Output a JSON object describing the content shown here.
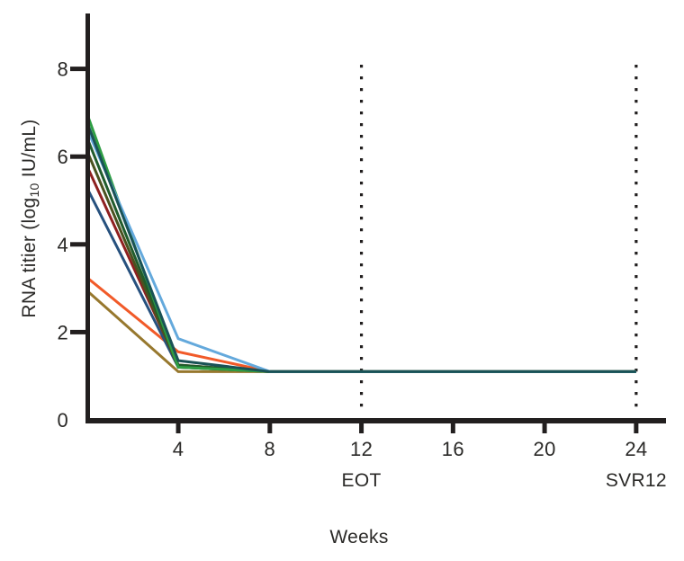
{
  "figure": {
    "background": "#ffffff",
    "axis_color": "#221f1f",
    "text_color": "#2b2a28"
  },
  "chart_data": {
    "type": "line",
    "title": "",
    "xlabel": "Weeks",
    "ylabel": "RNA titier (log10 IU/mL)",
    "ylabel_parts": {
      "pre_sub": "RNA titier (log",
      "sub": "10",
      "post_sub": " IU/mL)"
    },
    "x": [
      0,
      4,
      8,
      24
    ],
    "xlim": [
      0,
      25.3
    ],
    "ylim": [
      0,
      8
    ],
    "x_ticks": [
      4,
      8,
      12,
      16,
      20,
      24
    ],
    "y_ticks_with_marks": [
      2,
      4,
      6,
      8
    ],
    "y_tick_labels": [
      0,
      2,
      4,
      6,
      8
    ],
    "grid": "off",
    "legend": "none",
    "floor_value": 1.1,
    "annotations": [
      {
        "label": "EOT",
        "week": 12,
        "style": "dotted-vline"
      },
      {
        "label": "SVR12",
        "week": 24,
        "style": "dotted-vline"
      }
    ],
    "series": [
      {
        "name": "patient-dark-yellow",
        "color": "#97782E",
        "values": [
          2.95,
          1.1,
          1.1,
          1.1
        ]
      },
      {
        "name": "patient-orange",
        "color": "#F15A29",
        "values": [
          3.25,
          1.55,
          1.1,
          1.1
        ]
      },
      {
        "name": "patient-dark-blue",
        "color": "#27517E",
        "values": [
          5.3,
          1.2,
          1.1,
          1.1
        ]
      },
      {
        "name": "patient-dark-red",
        "color": "#8E2020",
        "values": [
          5.8,
          1.25,
          1.1,
          1.1
        ]
      },
      {
        "name": "patient-dark-olive",
        "color": "#4A5220",
        "values": [
          6.15,
          1.2,
          1.1,
          1.1
        ]
      },
      {
        "name": "patient-dark-green",
        "color": "#215C2C",
        "values": [
          6.45,
          1.25,
          1.1,
          1.1
        ]
      },
      {
        "name": "patient-green",
        "color": "#2E9E44",
        "values": [
          7.0,
          1.2,
          1.1,
          1.1
        ]
      },
      {
        "name": "patient-light-blue",
        "color": "#64A9DC",
        "values": [
          6.65,
          1.85,
          1.1,
          1.1
        ]
      },
      {
        "name": "patient-dark-teal",
        "color": "#1A5256",
        "values": [
          6.8,
          1.35,
          1.1,
          1.1
        ]
      }
    ]
  }
}
